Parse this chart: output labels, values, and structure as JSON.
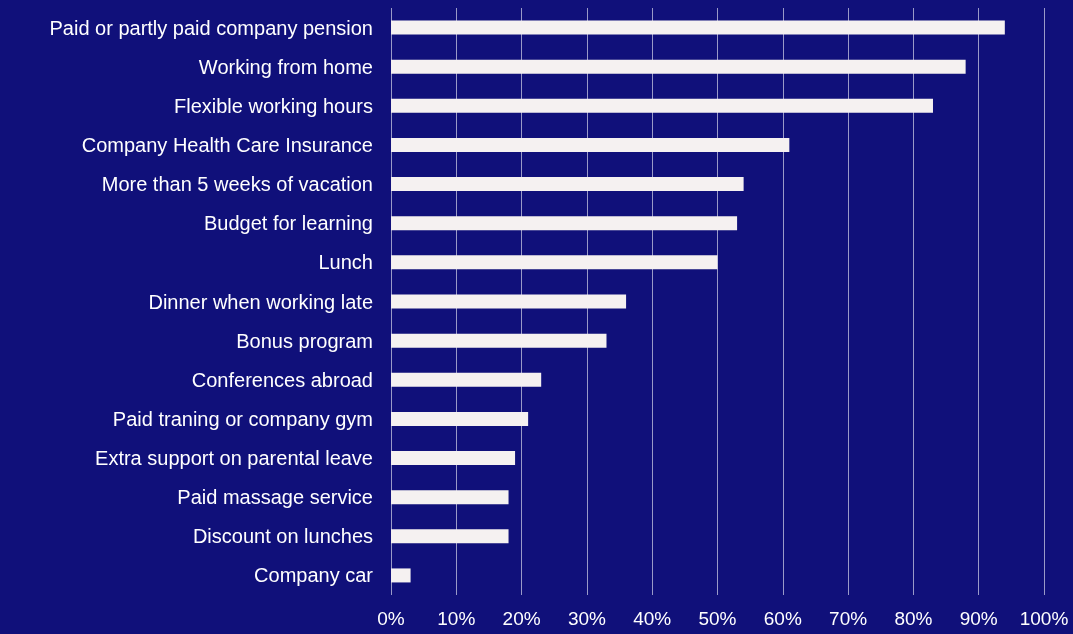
{
  "chart_data": {
    "type": "bar",
    "orientation": "horizontal",
    "categories": [
      "Paid or partly paid company pension",
      "Working from home",
      "Flexible working hours",
      "Company Health Care Insurance",
      "More than 5 weeks of vacation",
      "Budget for learning",
      "Lunch",
      "Dinner when working late",
      "Bonus program",
      "Conferences abroad",
      "Paid traning or company gym",
      "Extra support on parental leave",
      "Paid massage service",
      "Discount on lunches",
      "Company car"
    ],
    "values": [
      94,
      88,
      83,
      61,
      54,
      53,
      50,
      36,
      33,
      23,
      21,
      19,
      18,
      18,
      3
    ],
    "color": "#f5f1f1",
    "xlim": [
      0,
      100
    ],
    "xticks": [
      {
        "value": 0,
        "label": "0%"
      },
      {
        "value": 10,
        "label": "10%"
      },
      {
        "value": 20,
        "label": "20%"
      },
      {
        "value": 30,
        "label": "30%"
      },
      {
        "value": 40,
        "label": "40%"
      },
      {
        "value": 50,
        "label": "50%"
      },
      {
        "value": 60,
        "label": "60%"
      },
      {
        "value": 70,
        "label": "70%"
      },
      {
        "value": 80,
        "label": "80%"
      },
      {
        "value": 90,
        "label": "90%"
      },
      {
        "value": 100,
        "label": "100%"
      }
    ],
    "grid": "x"
  }
}
